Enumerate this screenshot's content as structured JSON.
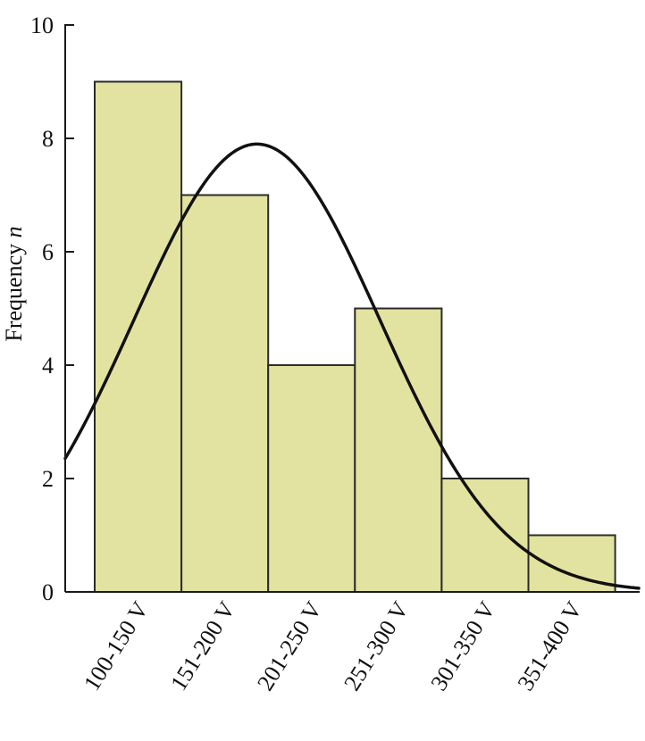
{
  "chart_data": {
    "type": "bar",
    "title": "",
    "xlabel": "",
    "ylabel": "Frequency",
    "ylabel_variable": "n",
    "categories": [
      "100-150 V",
      "151-200 V",
      "201-250 V",
      "251-300 V",
      "301-350 V",
      "351-400 V"
    ],
    "values": [
      9,
      7,
      4,
      5,
      2,
      1
    ],
    "ylim": [
      0,
      10
    ],
    "yticks": [
      "0",
      "2",
      "4",
      "6",
      "8",
      "10"
    ],
    "grid": false,
    "overlay": {
      "type": "normal-fit-curve",
      "peak_value": 7.9,
      "peak_position_in_categories": 1.87,
      "spread_in_categories": 1.42
    },
    "colors": {
      "bar_fill": "#e3e3a1",
      "bar_stroke": "#2b2b2b",
      "curve": "#111111",
      "axis": "#1a1a1a"
    }
  }
}
